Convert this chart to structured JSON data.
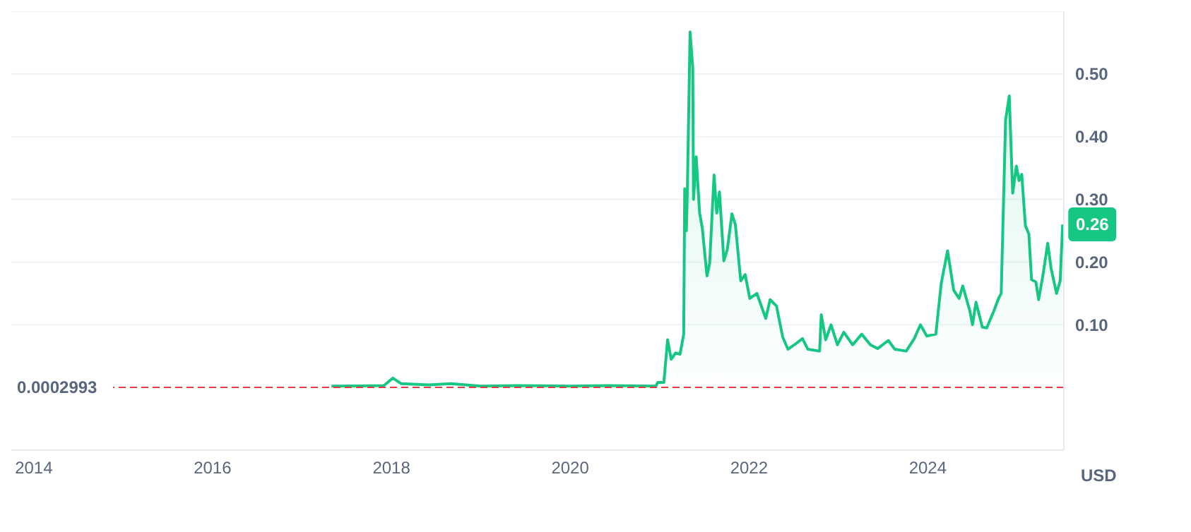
{
  "chart_data": {
    "type": "area",
    "ylabel": "USD",
    "color": "#16c784",
    "x": [
      "2017-05-01",
      "2017-12-01",
      "2018-01-07",
      "2018-02-10",
      "2018-06-01",
      "2018-09-01",
      "2019-01-01",
      "2019-06-01",
      "2020-01-01",
      "2020-06-01",
      "2020-12-16",
      "2020-12-24",
      "2021-01-18",
      "2021-02-02",
      "2021-02-17",
      "2021-03-07",
      "2021-03-25",
      "2021-04-09",
      "2021-04-13",
      "2021-04-20",
      "2021-04-24",
      "2021-05-05",
      "2021-05-16",
      "2021-05-19",
      "2021-05-30",
      "2021-06-13",
      "2021-06-24",
      "2021-07-13",
      "2021-07-24",
      "2021-08-11",
      "2021-08-22",
      "2021-09-02",
      "2021-09-20",
      "2021-10-04",
      "2021-10-23",
      "2021-11-06",
      "2021-11-28",
      "2021-12-16",
      "2022-01-04",
      "2022-02-02",
      "2022-03-10",
      "2022-03-28",
      "2022-04-23",
      "2022-05-18",
      "2022-06-09",
      "2022-07-05",
      "2022-08-07",
      "2022-08-29",
      "2022-10-16",
      "2022-10-23",
      "2022-11-10",
      "2022-12-02",
      "2022-12-28",
      "2023-01-23",
      "2023-02-28",
      "2023-04-06",
      "2023-05-12",
      "2023-06-10",
      "2023-07-24",
      "2023-08-19",
      "2023-10-05",
      "2023-11-07",
      "2023-12-02",
      "2023-12-28",
      "2024-02-03",
      "2024-02-25",
      "2024-03-22",
      "2024-04-16",
      "2024-05-08",
      "2024-05-23",
      "2024-06-21",
      "2024-07-02",
      "2024-07-16",
      "2024-08-11",
      "2024-08-29",
      "2024-09-27",
      "2024-10-16",
      "2024-10-27",
      "2024-11-14",
      "2024-11-29",
      "2024-12-13",
      "2024-12-28",
      "2025-01-08",
      "2025-01-19",
      "2025-02-03",
      "2025-02-17",
      "2025-02-28",
      "2025-03-18",
      "2025-03-29",
      "2025-04-16",
      "2025-05-05",
      "2025-05-19",
      "2025-06-10",
      "2025-06-25",
      "2025-07-05"
    ],
    "values": [
      0.002,
      0.003,
      0.015,
      0.006,
      0.004,
      0.006,
      0.002,
      0.003,
      0.002,
      0.003,
      0.002,
      0.008,
      0.008,
      0.076,
      0.045,
      0.055,
      0.053,
      0.085,
      0.317,
      0.25,
      0.317,
      0.567,
      0.51,
      0.3,
      0.368,
      0.278,
      0.254,
      0.178,
      0.198,
      0.339,
      0.278,
      0.312,
      0.202,
      0.22,
      0.277,
      0.26,
      0.17,
      0.18,
      0.142,
      0.15,
      0.11,
      0.14,
      0.13,
      0.081,
      0.061,
      0.068,
      0.078,
      0.061,
      0.058,
      0.116,
      0.076,
      0.1,
      0.068,
      0.088,
      0.068,
      0.085,
      0.068,
      0.062,
      0.075,
      0.061,
      0.058,
      0.078,
      0.1,
      0.082,
      0.085,
      0.166,
      0.218,
      0.155,
      0.142,
      0.162,
      0.122,
      0.1,
      0.136,
      0.096,
      0.095,
      0.122,
      0.142,
      0.15,
      0.427,
      0.465,
      0.31,
      0.353,
      0.33,
      0.34,
      0.258,
      0.245,
      0.172,
      0.168,
      0.14,
      0.18,
      0.23,
      0.19,
      0.15,
      0.17,
      0.26
    ],
    "xlim": [
      "2013-10-01",
      "2025-07-10"
    ],
    "xticks": [
      "2014",
      "2016",
      "2018",
      "2020",
      "2022",
      "2024"
    ],
    "ylim": [
      -0.1,
      0.6
    ],
    "yticks": [
      {
        "value": 0.1,
        "label": "0.10"
      },
      {
        "value": 0.2,
        "label": "0.20"
      },
      {
        "value": 0.3,
        "label": "0.30"
      },
      {
        "value": 0.4,
        "label": "0.40"
      },
      {
        "value": 0.5,
        "label": "0.50"
      }
    ],
    "grid": "y",
    "ref_lines": [
      {
        "axis": "y",
        "value": 0.0002993,
        "label": "0.0002993",
        "color": "#ea3943",
        "line_style": "dashed"
      }
    ],
    "annotations": [
      {
        "text": "0.26",
        "x": "2025-07-05",
        "y": 0.26
      }
    ]
  }
}
